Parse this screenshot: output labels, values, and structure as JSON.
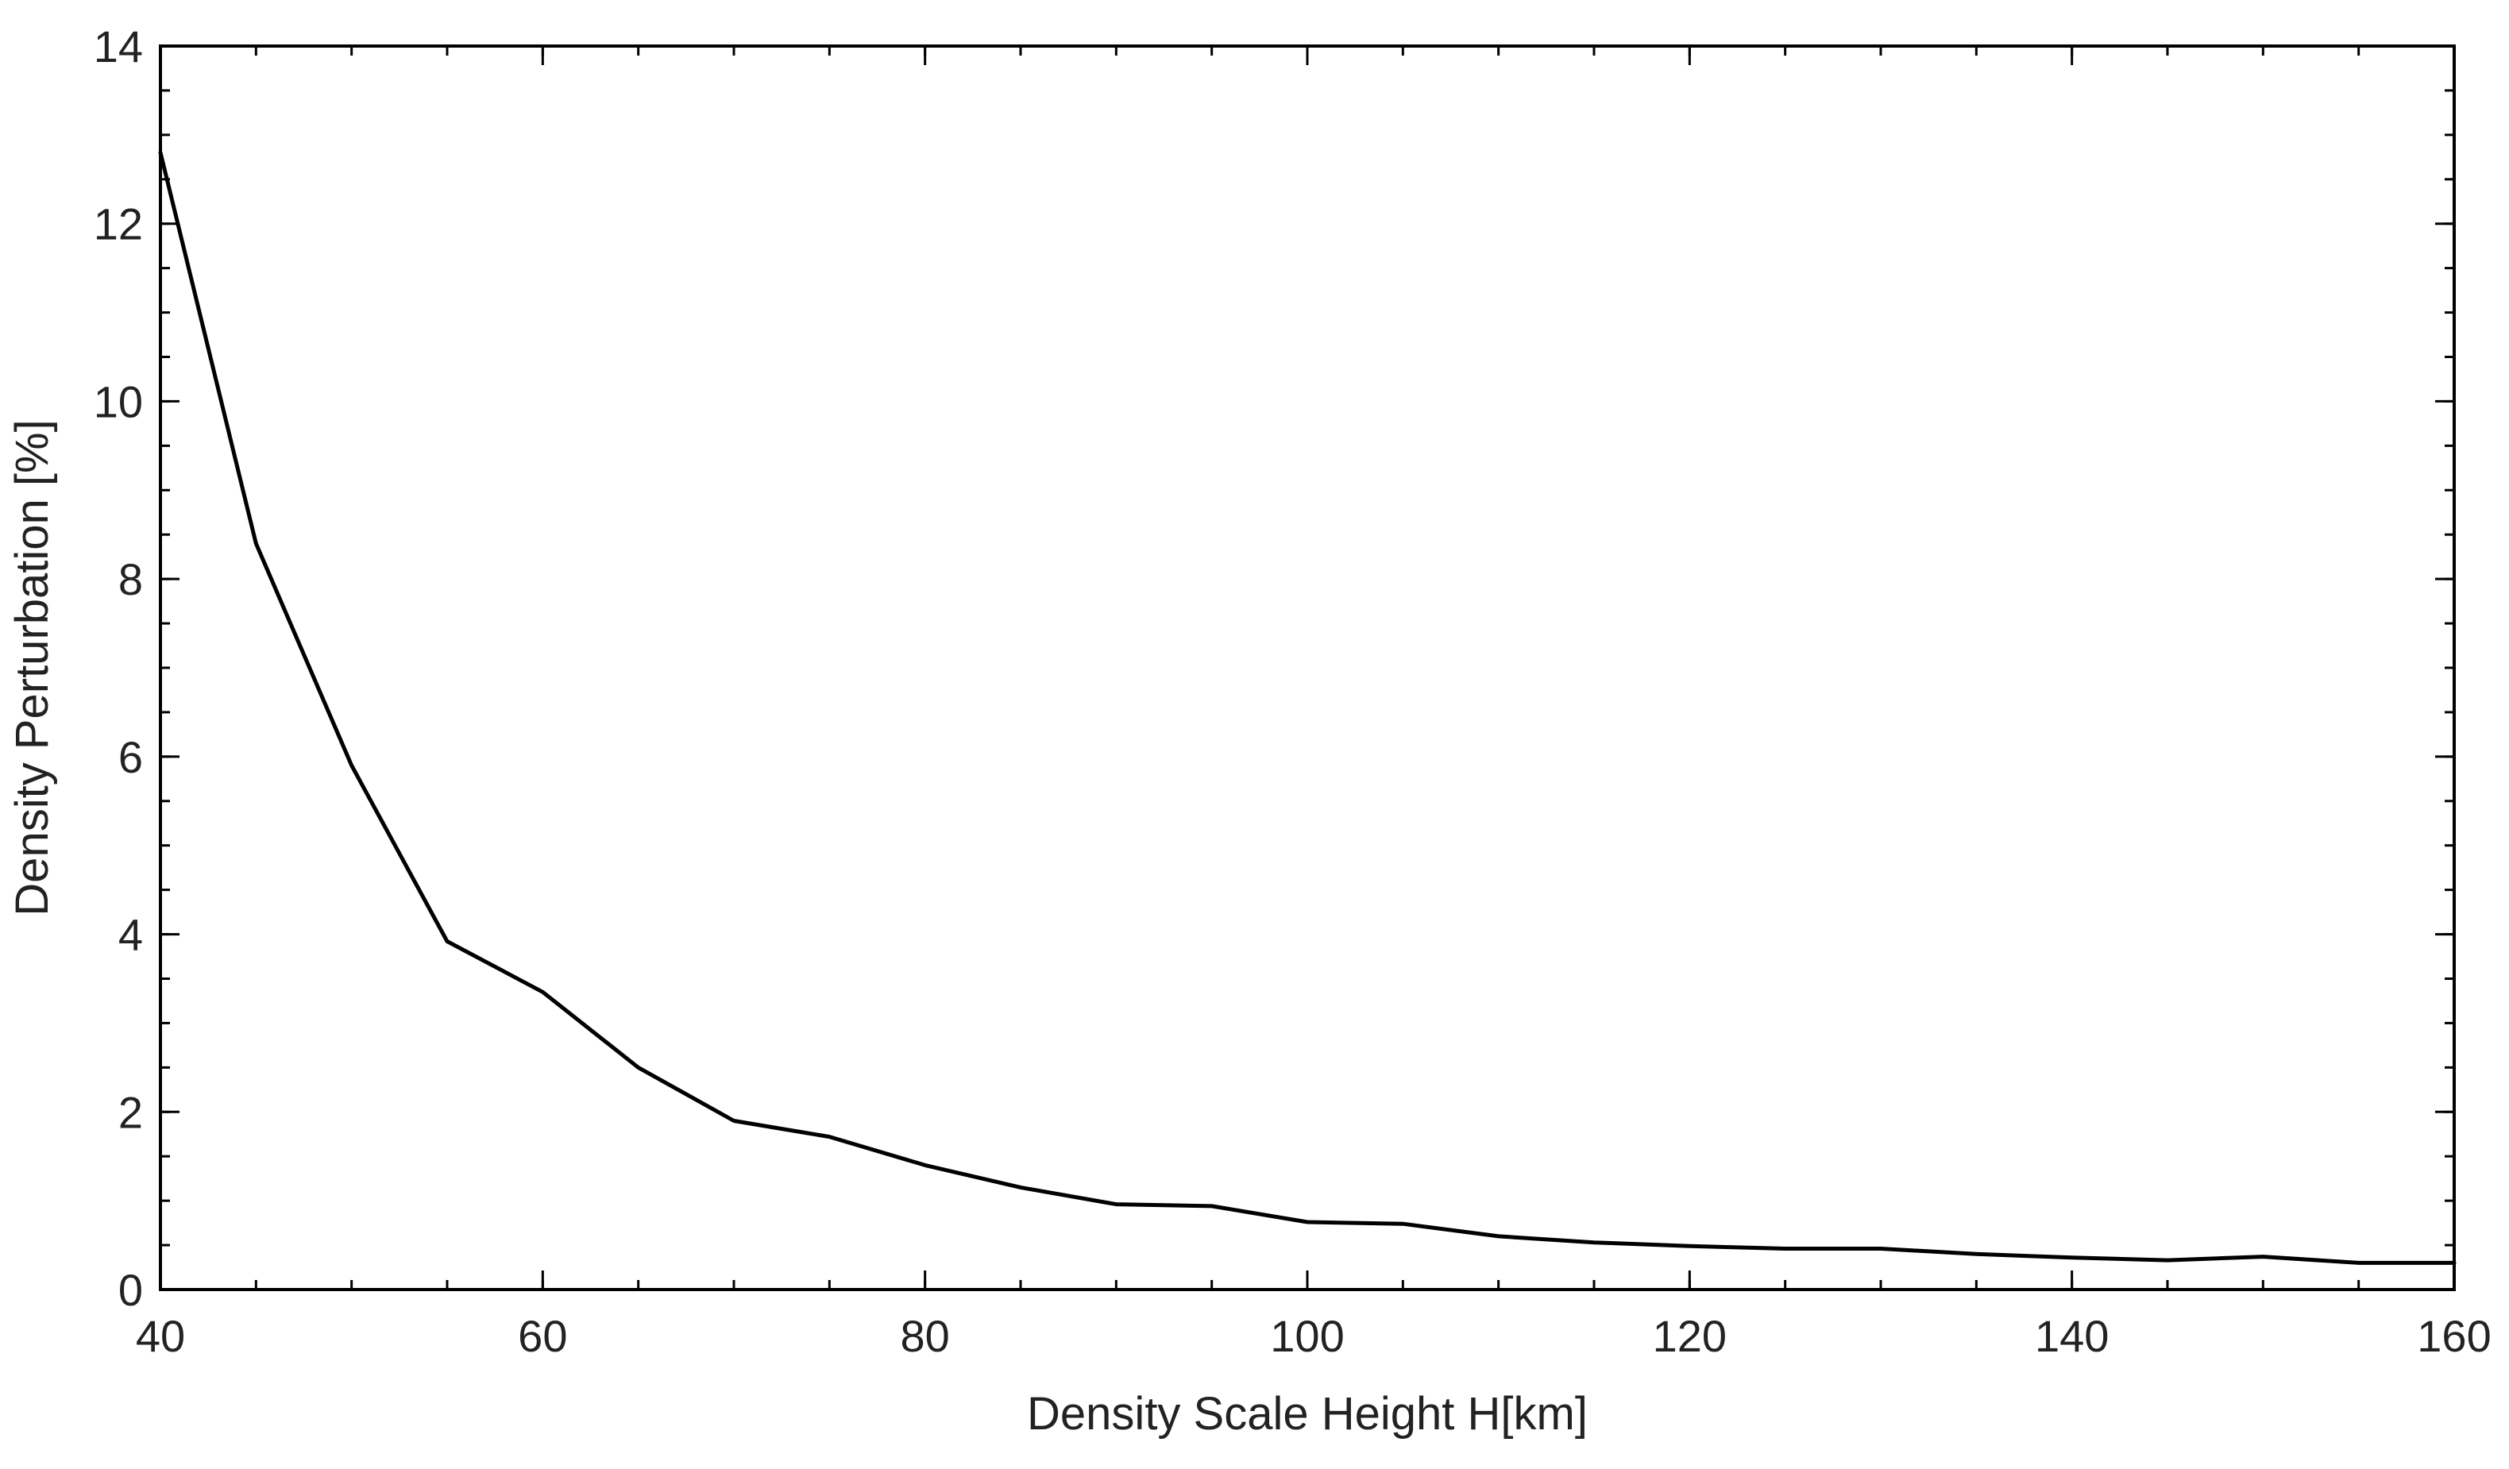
{
  "chart_data": {
    "type": "line",
    "title": "",
    "xlabel": "Density Scale Height H[km]",
    "ylabel": "Density Perturbation [%]",
    "xlim": [
      40,
      160
    ],
    "ylim": [
      0,
      14
    ],
    "xticks": [
      40,
      60,
      80,
      100,
      120,
      140,
      160
    ],
    "yticks": [
      0,
      2,
      4,
      6,
      8,
      10,
      12,
      14
    ],
    "x_minor_step": 5,
    "y_minor_step": 0.5,
    "grid": false,
    "series": [
      {
        "color": "#000000",
        "x": [
          40,
          45,
          50,
          55,
          60,
          65,
          70,
          75,
          80,
          85,
          90,
          95,
          100,
          105,
          110,
          115,
          120,
          125,
          130,
          135,
          140,
          145,
          150,
          155,
          160
        ],
        "y": [
          12.8,
          8.4,
          5.9,
          3.92,
          3.35,
          2.5,
          1.9,
          1.72,
          1.4,
          1.15,
          0.96,
          0.94,
          0.76,
          0.74,
          0.6,
          0.53,
          0.49,
          0.46,
          0.46,
          0.4,
          0.36,
          0.33,
          0.37,
          0.3,
          0.3
        ]
      }
    ]
  }
}
